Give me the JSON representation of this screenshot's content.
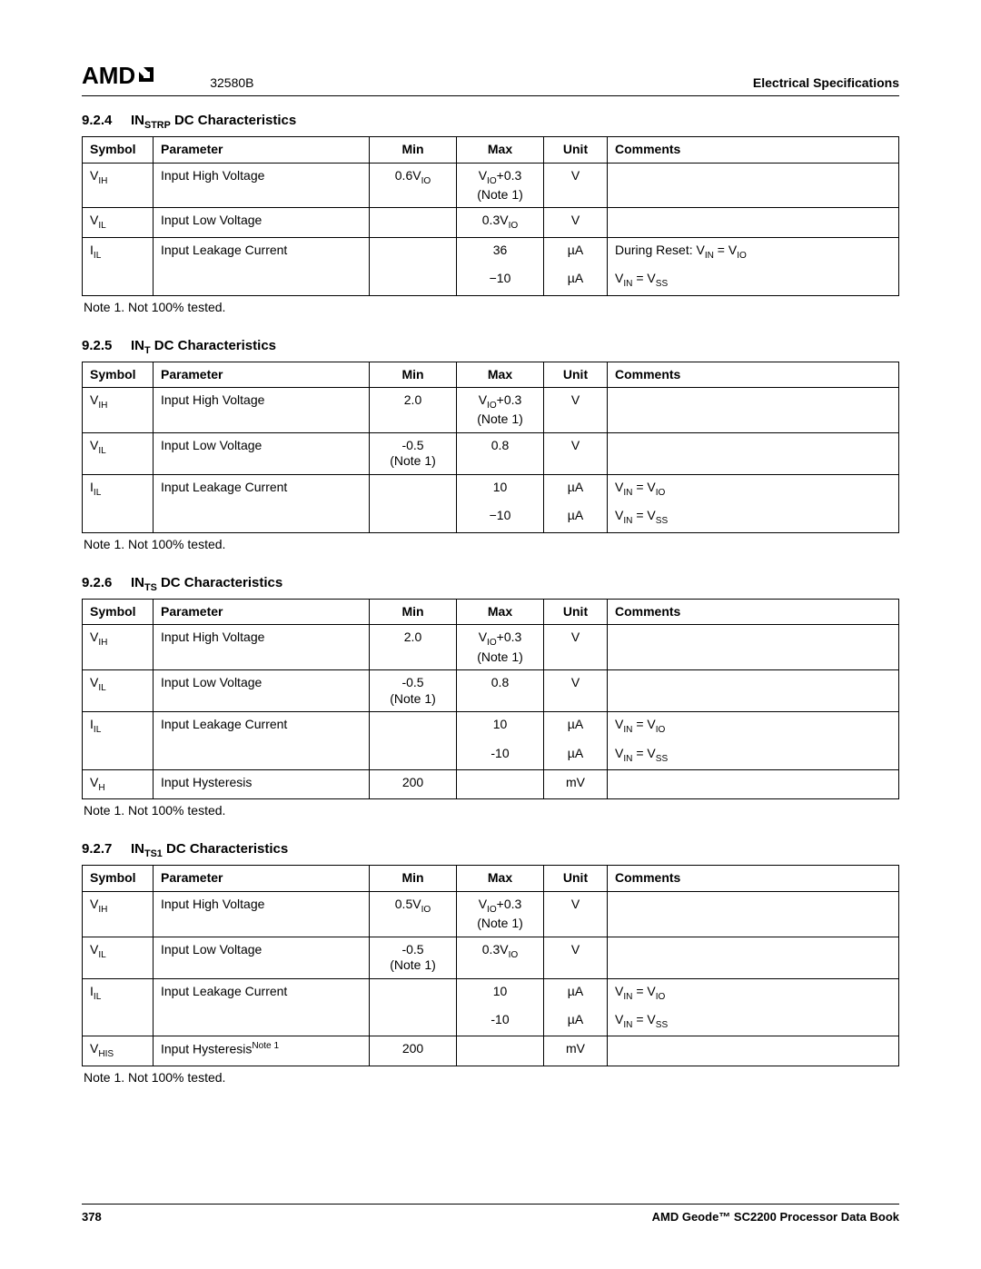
{
  "header": {
    "logo_text": "AMD",
    "doc_number": "32580B",
    "right_title": "Electrical Specifications"
  },
  "footer": {
    "page_num": "378",
    "book_title": "AMD Geode™ SC2200  Processor Data Book"
  },
  "note_text": "Note 1.   Not 100% tested.",
  "col_headers": {
    "symbol": "Symbol",
    "parameter": "Parameter",
    "min": "Min",
    "max": "Max",
    "unit": "Unit",
    "comments": "Comments"
  },
  "sections": {
    "s924": {
      "num": "9.2.4",
      "title_prefix": "IN",
      "title_sub": "STRP",
      "title_suffix": " DC Characteristics",
      "rows": [
        {
          "sym_main": "V",
          "sym_sub": "IH",
          "param": "Input High Voltage",
          "min_html": "0.6V<sub>IO</sub>",
          "max_html": "V<sub>IO</sub>+0.3<br>(Note 1)",
          "unit": "V",
          "comm_html": ""
        },
        {
          "sym_main": "V",
          "sym_sub": "IL",
          "param": "Input Low Voltage",
          "min_html": "",
          "max_html": "0.3V<sub>IO</sub>",
          "unit": "V",
          "comm_html": ""
        },
        {
          "sym_main": "I",
          "sym_sub": "IL",
          "param": "Input Leakage Current",
          "min_html": "",
          "max_html": "36",
          "unit": "µA",
          "comm_html": "During Reset: V<sub>IN</sub> = V<sub>IO</sub>",
          "split": true
        },
        {
          "sym_main": "",
          "sym_sub": "",
          "param": "",
          "min_html": "",
          "max_html": "−10",
          "unit": "µA",
          "comm_html": "V<sub>IN</sub> = V<sub>SS</sub>",
          "cont": true
        }
      ]
    },
    "s925": {
      "num": "9.2.5",
      "title_prefix": "IN",
      "title_sub": "T",
      "title_suffix": " DC Characteristics",
      "rows": [
        {
          "sym_main": "V",
          "sym_sub": "IH",
          "param": "Input High Voltage",
          "min_html": "2.0",
          "max_html": "V<sub>IO</sub>+0.3<br>(Note  1)",
          "unit": "V",
          "comm_html": ""
        },
        {
          "sym_main": "V",
          "sym_sub": "IL",
          "param": "Input Low Voltage",
          "min_html": "-0.5<br>(Note 1)",
          "max_html": "0.8",
          "unit": "V",
          "comm_html": ""
        },
        {
          "sym_main": "I",
          "sym_sub": "IL",
          "param": "Input Leakage Current",
          "min_html": "",
          "max_html": "10",
          "unit": "µA",
          "comm_html": "V<sub>IN</sub> = V<sub>IO</sub>",
          "split": true
        },
        {
          "sym_main": "",
          "sym_sub": "",
          "param": "",
          "min_html": "",
          "max_html": "−10",
          "unit": "µA",
          "comm_html": "V<sub>IN</sub> = V<sub>SS</sub>",
          "cont": true
        }
      ]
    },
    "s926": {
      "num": "9.2.6",
      "title_prefix": "IN",
      "title_sub": "TS",
      "title_suffix": " DC Characteristics",
      "rows": [
        {
          "sym_main": "V",
          "sym_sub": "IH",
          "param": "Input High Voltage",
          "min_html": "2.0",
          "max_html": "V<sub>IO</sub>+0.3<br>(Note  1)",
          "unit": "V",
          "comm_html": ""
        },
        {
          "sym_main": "V",
          "sym_sub": "IL",
          "param": "Input Low Voltage",
          "min_html": "-0.5<br>(Note 1)",
          "max_html": "0.8",
          "unit": "V",
          "comm_html": ""
        },
        {
          "sym_main": "I",
          "sym_sub": "IL",
          "param": "Input Leakage Current",
          "min_html": "",
          "max_html": "10",
          "unit": "µA",
          "comm_html": "V<sub>IN</sub> = V<sub>IO</sub>",
          "split": true
        },
        {
          "sym_main": "",
          "sym_sub": "",
          "param": "",
          "min_html": "",
          "max_html": "-10",
          "unit": "µA",
          "comm_html": "V<sub>IN</sub> = V<sub>SS</sub>",
          "cont": true
        },
        {
          "sym_main": "V",
          "sym_sub": "H",
          "param": "Input Hysteresis",
          "min_html": "200",
          "max_html": "",
          "unit": "mV",
          "comm_html": ""
        }
      ]
    },
    "s927": {
      "num": "9.2.7",
      "title_prefix": "IN",
      "title_sub": "TS1",
      "title_suffix": " DC Characteristics",
      "rows": [
        {
          "sym_main": "V",
          "sym_sub": "IH",
          "param": "Input High Voltage",
          "min_html": "0.5V<sub>IO</sub>",
          "max_html": "V<sub>IO</sub>+0.3<br>(Note  1)",
          "unit": "V",
          "comm_html": ""
        },
        {
          "sym_main": "V",
          "sym_sub": "IL",
          "param": "Input Low Voltage",
          "min_html": "-0.5<br>(Note 1)",
          "max_html": "0.3V<sub>IO</sub>",
          "unit": "V",
          "comm_html": ""
        },
        {
          "sym_main": "I",
          "sym_sub": "IL",
          "param": "Input Leakage Current",
          "min_html": "",
          "max_html": "10",
          "unit": "µA",
          "comm_html": "V<sub>IN</sub> = V<sub>IO</sub>",
          "split": true
        },
        {
          "sym_main": "",
          "sym_sub": "",
          "param": "",
          "min_html": "",
          "max_html": "-10",
          "unit": "µA",
          "comm_html": "V<sub>IN</sub> = V<sub>SS</sub>",
          "cont": true
        },
        {
          "sym_main": "V",
          "sym_sub": "HIS",
          "param_html": "Input Hysteresis<sup>Note 1</sup>",
          "min_html": "200",
          "max_html": "",
          "unit": "mV",
          "comm_html": ""
        }
      ]
    }
  }
}
